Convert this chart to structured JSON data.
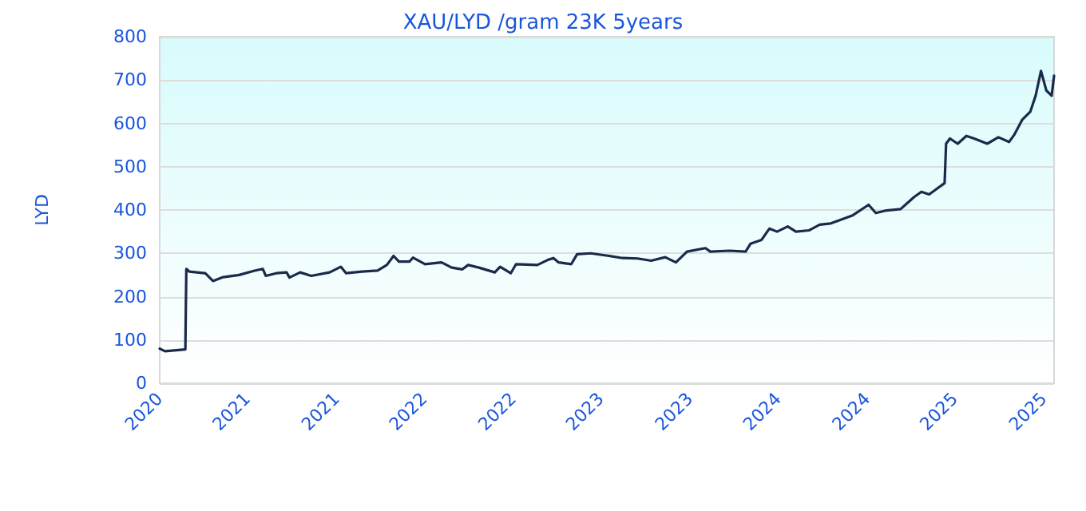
{
  "chart_data": {
    "type": "line",
    "title": "XAU/LYD /gram 23K 5years",
    "ylabel": "LYD",
    "xlim": [
      "2020-11-10",
      "2025-12-01"
    ],
    "xticks": [
      {
        "value": "2020-11-10",
        "label": "2020"
      },
      {
        "value": "2021-05-10",
        "label": "2021"
      },
      {
        "value": "2021-11-10",
        "label": "2021"
      },
      {
        "value": "2022-05-10",
        "label": "2022"
      },
      {
        "value": "2022-11-10",
        "label": "2022"
      },
      {
        "value": "2023-05-10",
        "label": "2023"
      },
      {
        "value": "2023-11-10",
        "label": "2023"
      },
      {
        "value": "2024-05-10",
        "label": "2024"
      },
      {
        "value": "2024-11-10",
        "label": "2024"
      },
      {
        "value": "2025-05-10",
        "label": "2025"
      },
      {
        "value": "2025-11-10",
        "label": "2025"
      }
    ],
    "ylim": [
      0,
      800
    ],
    "yticks": [
      0,
      100,
      200,
      300,
      400,
      500,
      600,
      700,
      800
    ],
    "grid": "y",
    "marker": "none",
    "line_style": "solid",
    "series": [
      {
        "color": "#1b2a4a",
        "x": [
          "2020-11-10",
          "2020-11-21",
          "2021-01-02",
          "2021-01-03",
          "2021-01-04",
          "2021-01-10",
          "2021-02-12",
          "2021-02-28",
          "2021-03-21",
          "2021-04-23",
          "2021-05-25",
          "2021-06-11",
          "2021-06-17",
          "2021-07-09",
          "2021-07-30",
          "2021-08-05",
          "2021-08-27",
          "2021-09-19",
          "2021-10-27",
          "2021-11-19",
          "2021-11-30",
          "2022-01-02",
          "2022-02-03",
          "2022-02-22",
          "2022-03-08",
          "2022-03-19",
          "2022-04-10",
          "2022-04-17",
          "2022-05-12",
          "2022-06-15",
          "2022-07-06",
          "2022-07-28",
          "2022-08-09",
          "2022-08-31",
          "2022-10-03",
          "2022-10-14",
          "2022-11-05",
          "2022-11-16",
          "2022-12-30",
          "2023-01-21",
          "2023-02-01",
          "2023-02-12",
          "2023-03-10",
          "2023-03-22",
          "2023-04-19",
          "2023-05-21",
          "2023-06-24",
          "2023-07-25",
          "2023-08-22",
          "2023-09-20",
          "2023-10-12",
          "2023-11-04",
          "2023-12-12",
          "2023-12-22",
          "2024-01-31",
          "2024-03-04",
          "2024-03-14",
          "2024-04-06",
          "2024-04-22",
          "2024-05-08",
          "2024-05-30",
          "2024-06-16",
          "2024-07-13",
          "2024-08-04",
          "2024-08-27",
          "2024-10-10",
          "2024-11-13",
          "2024-11-28",
          "2024-12-20",
          "2025-01-18",
          "2025-02-15",
          "2025-03-02",
          "2025-03-18",
          "2025-04-09",
          "2025-04-19",
          "2025-04-22",
          "2025-04-30",
          "2025-05-16",
          "2025-06-03",
          "2025-06-19",
          "2025-07-16",
          "2025-08-08",
          "2025-08-30",
          "2025-09-10",
          "2025-09-26",
          "2025-10-13",
          "2025-10-24",
          "2025-11-04",
          "2025-11-15",
          "2025-11-26",
          "2025-12-01"
        ],
        "values": [
          80,
          74,
          78,
          177,
          264,
          258,
          254,
          236,
          245,
          250,
          260,
          264,
          248,
          254,
          256,
          244,
          256,
          248,
          256,
          269,
          254,
          258,
          260,
          273,
          294,
          281,
          281,
          290,
          275,
          279,
          267,
          263,
          273,
          267,
          256,
          269,
          254,
          275,
          273,
          285,
          289,
          279,
          275,
          298,
          300,
          295,
          289,
          288,
          283,
          291,
          279,
          304,
          312,
          304,
          306,
          304,
          322,
          331,
          357,
          350,
          362,
          350,
          353,
          366,
          369,
          387,
          412,
          393,
          399,
          402,
          430,
          442,
          436,
          454,
          462,
          553,
          565,
          553,
          571,
          565,
          553,
          568,
          557,
          574,
          608,
          627,
          664,
          721,
          676,
          664,
          710
        ]
      }
    ]
  }
}
